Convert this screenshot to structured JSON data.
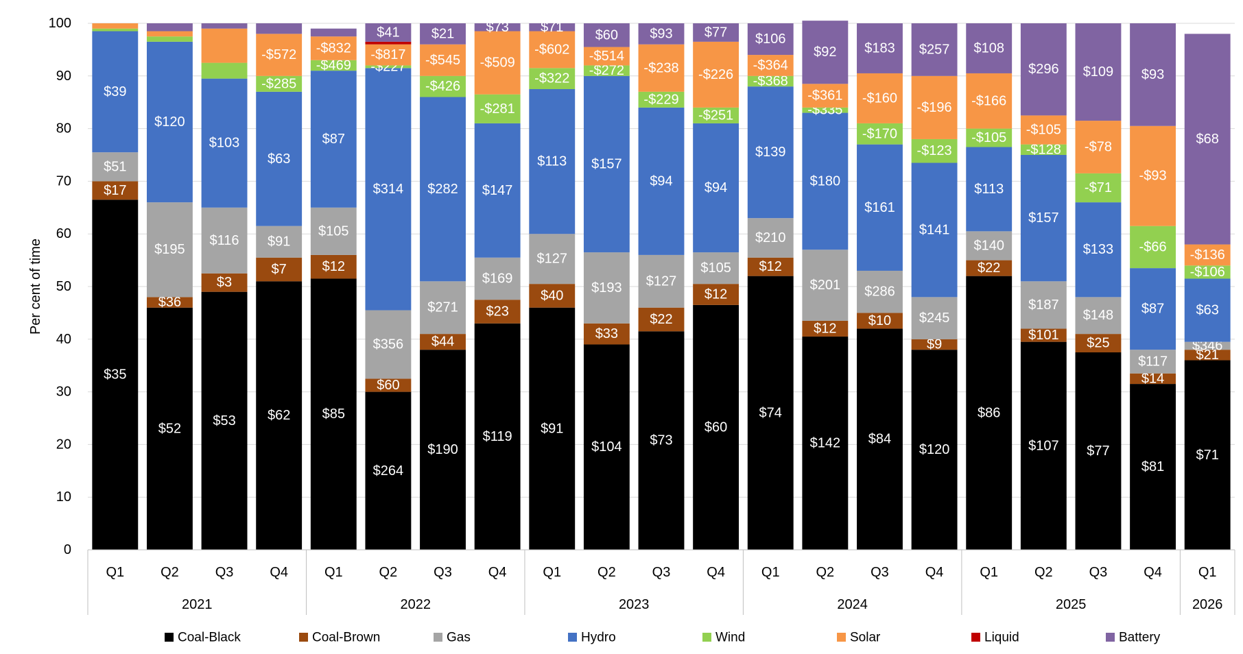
{
  "chart_data": {
    "type": "bar",
    "stacked": true,
    "title": "",
    "xlabel": "",
    "ylabel": "Per cent of time",
    "ylim": [
      0,
      100
    ],
    "yticks": [
      0,
      10,
      20,
      30,
      40,
      50,
      60,
      70,
      80,
      90,
      100
    ],
    "grid": true,
    "legend_position": "bottom",
    "groups": [
      {
        "label": "2021",
        "quarters": [
          "Q1",
          "Q2",
          "Q3",
          "Q4"
        ]
      },
      {
        "label": "2022",
        "quarters": [
          "Q1",
          "Q2",
          "Q3",
          "Q4"
        ]
      },
      {
        "label": "2023",
        "quarters": [
          "Q1",
          "Q2",
          "Q3",
          "Q4"
        ]
      },
      {
        "label": "2024",
        "quarters": [
          "Q1",
          "Q2",
          "Q3",
          "Q4"
        ]
      },
      {
        "label": "2025",
        "quarters": [
          "Q1",
          "Q2",
          "Q3",
          "Q4"
        ]
      },
      {
        "label": "2026",
        "quarters": [
          "Q1"
        ]
      }
    ],
    "series": [
      {
        "name": "Coal-Black",
        "color": "#000000",
        "label_color": "#ffffff",
        "values": [
          66.5,
          46,
          49,
          51,
          51.5,
          30,
          38,
          43,
          46,
          39,
          41.5,
          46.5,
          52,
          40.5,
          42,
          38,
          52,
          39.5,
          37.5,
          31.5,
          36
        ],
        "labels": [
          "$35",
          "$52",
          "$53",
          "$62",
          "$85",
          "$264",
          "$190",
          "$119",
          "$91",
          "$104",
          "$73",
          "$60",
          "$74",
          "$142",
          "$84",
          "$120",
          "$86",
          "$107",
          "$77",
          "$81",
          "$71"
        ]
      },
      {
        "name": "Coal-Brown",
        "color": "#9a4a0f",
        "label_color": "#ffffff",
        "values": [
          3.5,
          2,
          3.5,
          4.5,
          4.5,
          2.5,
          3,
          4.5,
          4.5,
          4,
          4.5,
          4,
          3.5,
          3,
          3,
          2,
          3,
          2.5,
          3.5,
          2,
          2
        ],
        "labels": [
          "$17",
          "$36",
          "$3",
          "$7",
          "$12",
          "$60",
          "$44",
          "$23",
          "$40",
          "$33",
          "$22",
          "$12",
          "$12",
          "$12",
          "$10",
          "$9",
          "$22",
          "$101",
          "$25",
          "$14",
          "$21"
        ]
      },
      {
        "name": "Gas",
        "color": "#a5a5a5",
        "label_color": "#ffffff",
        "values": [
          5.5,
          18,
          12.5,
          6,
          9,
          13,
          10,
          8,
          9.5,
          13.5,
          10,
          6,
          7.5,
          13.5,
          8,
          8,
          5.5,
          9,
          7,
          4.5,
          1.5
        ],
        "labels": [
          "$51",
          "$195",
          "$116",
          "$91",
          "$105",
          "$356",
          "$271",
          "$169",
          "$127",
          "$193",
          "$127",
          "$105",
          "$210",
          "$201",
          "$286",
          "$245",
          "$140",
          "$187",
          "$148",
          "$117",
          "$346"
        ]
      },
      {
        "name": "Hydro",
        "color": "#4472c4",
        "label_color": "#ffffff",
        "values": [
          23,
          30.5,
          24.5,
          25.5,
          26,
          46,
          35,
          25.5,
          27.5,
          33.5,
          28,
          24.5,
          25,
          26,
          24,
          25.5,
          16,
          24,
          18,
          15.5,
          12
        ],
        "labels": [
          "$39",
          "$120",
          "$103",
          "$63",
          "$87",
          "$314",
          "$282",
          "$147",
          "$113",
          "$157",
          "$94",
          "$94",
          "$139",
          "$180",
          "$161",
          "$141",
          "$113",
          "$157",
          "$133",
          "$87",
          "$63"
        ]
      },
      {
        "name": "Wind",
        "color": "#92d050",
        "label_color": "#ffffff",
        "values": [
          0.5,
          1,
          3,
          3,
          2,
          0.5,
          4,
          5.5,
          4,
          2,
          3,
          3,
          2,
          1,
          4,
          4.5,
          3.5,
          2,
          5.5,
          8,
          2.5
        ],
        "labels": [
          "",
          "",
          "",
          "-$285",
          "-$469",
          "-$227",
          "-$426",
          "-$281",
          "-$322",
          "-$272",
          "-$229",
          "-$251",
          "-$368",
          "-$335",
          "-$170",
          "-$123",
          "-$105",
          "-$128",
          "-$71",
          "-$66",
          "-$106"
        ]
      },
      {
        "name": "Solar",
        "color": "#f79646",
        "label_color": "#ffffff",
        "values": [
          1,
          1,
          6.5,
          8,
          4.5,
          4,
          6,
          12,
          7,
          3.5,
          9,
          12.5,
          4,
          4.5,
          9.5,
          12,
          10.5,
          5.5,
          10,
          19,
          4
        ],
        "labels": [
          "",
          "",
          "",
          "-$572",
          "-$832",
          "-$817",
          "-$545",
          "-$509",
          "-$602",
          "-$514",
          "-$238",
          "-$226",
          "-$364",
          "-$361",
          "-$160",
          "-$196",
          "-$166",
          "-$105",
          "-$78",
          "-$93",
          "-$136"
        ]
      },
      {
        "name": "Liquid",
        "color": "#c00000",
        "label_color": "#ffffff",
        "values": [
          0,
          0,
          0,
          0,
          0,
          0.5,
          0,
          0,
          0,
          0,
          0,
          0,
          0,
          0,
          0,
          0,
          0,
          0,
          0,
          0,
          0
        ],
        "labels": [
          "",
          "",
          "",
          "",
          "",
          "",
          "",
          "",
          "",
          "",
          "",
          "",
          "",
          "",
          "",
          "",
          "",
          "",
          "",
          "",
          ""
        ]
      },
      {
        "name": "Battery",
        "color": "#8064a2",
        "label_color": "#ffffff",
        "values": [
          0,
          1.5,
          1,
          2,
          1.5,
          3.5,
          4,
          1.5,
          1.5,
          4.5,
          4,
          3.5,
          6,
          12,
          9.5,
          10,
          9.5,
          17.5,
          18.5,
          19.5,
          40
        ],
        "labels": [
          "",
          "",
          "",
          "",
          "",
          "$41",
          "$21",
          "$73",
          "$71",
          "$60",
          "$93",
          "$77",
          "$106",
          "$92",
          "$183",
          "$257",
          "$108",
          "$296",
          "$109",
          "$93",
          "$68"
        ]
      }
    ]
  }
}
